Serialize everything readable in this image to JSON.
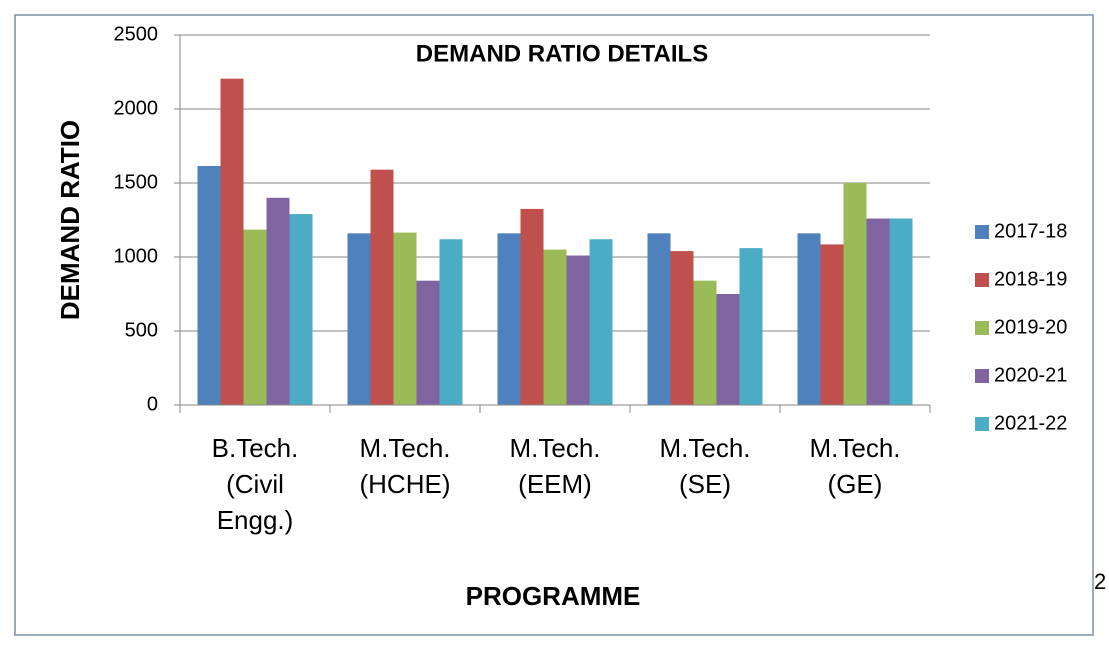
{
  "chart_data": {
    "type": "bar",
    "title": "DEMAND RATIO DETAILS",
    "x_label": "PROGRAMME",
    "y_label": "DEMAND RATIO",
    "categories": [
      "B.Tech. (Civil Engg.)",
      "M.Tech. (HCHE)",
      "M.Tech. (EEM)",
      "M.Tech. (SE)",
      "M.Tech. (GE)"
    ],
    "series": [
      {
        "name": "2017-18",
        "color": "#4f81bd",
        "values": [
          1615,
          1160,
          1160,
          1160,
          1160
        ]
      },
      {
        "name": "2018-19",
        "color": "#c0504d",
        "values": [
          2205,
          1590,
          1325,
          1040,
          1085
        ]
      },
      {
        "name": "2019-20",
        "color": "#9bbb59",
        "values": [
          1185,
          1165,
          1050,
          840,
          1500
        ]
      },
      {
        "name": "2020-21",
        "color": "#8064a2",
        "values": [
          1400,
          840,
          1010,
          750,
          1260
        ]
      },
      {
        "name": "2021-22",
        "color": "#4bacc6",
        "values": [
          1290,
          1120,
          1120,
          1060,
          1260
        ]
      }
    ],
    "ylim": [
      0,
      2500
    ],
    "yticks": [
      0,
      500,
      1000,
      1500,
      2000,
      2500
    ],
    "grid": true,
    "legend": "right"
  },
  "page_number": "2"
}
